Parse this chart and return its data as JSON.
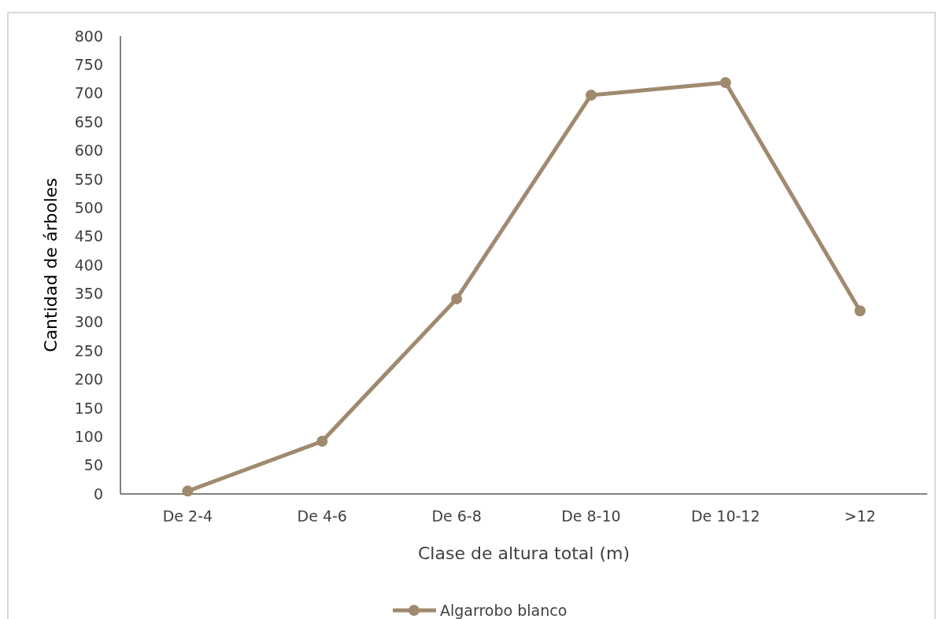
{
  "chart_data": {
    "type": "line",
    "xlabel": "Clase de altura total (m)",
    "ylabel": "Cantidad de árboles",
    "categories": [
      "De 2-4",
      "De 4-6",
      "De 6-8",
      "De 8-10",
      "De 10-12",
      ">12"
    ],
    "series": [
      {
        "name": "Algarrobo blanco",
        "color": "#a08a6e",
        "values": [
          5,
          92,
          341,
          697,
          719,
          320
        ]
      }
    ],
    "ylim": [
      0,
      800
    ],
    "yticks": [
      0,
      50,
      100,
      150,
      200,
      250,
      300,
      350,
      400,
      450,
      500,
      550,
      600,
      650,
      700,
      750,
      800
    ],
    "grid": false,
    "legend": "bottom",
    "marker": "circle",
    "line_style": "solid"
  }
}
